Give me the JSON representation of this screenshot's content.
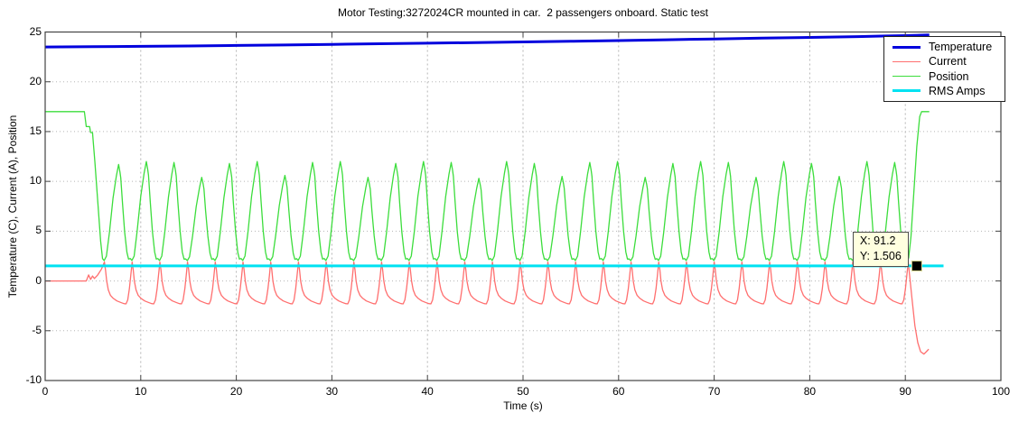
{
  "chart_data": {
    "type": "line",
    "title": "Motor Testing:3272024CR mounted in car.  2 passengers onboard. Static test",
    "xlabel": "Time (s)",
    "ylabel": "Temperature (C), Current (A), Position",
    "xlim": [
      0,
      100
    ],
    "ylim": [
      -10,
      25
    ],
    "xticks": [
      0,
      10,
      20,
      30,
      40,
      50,
      60,
      70,
      80,
      90,
      100
    ],
    "yticks": [
      -10,
      -5,
      0,
      5,
      10,
      15,
      20,
      25
    ],
    "grid": true,
    "legend_position": "northeast",
    "axis_color": "#444444",
    "grid_color": "#b5b5b5",
    "series": [
      {
        "name": "Temperature",
        "color": "#0000dd",
        "width": 3,
        "points": [
          [
            0,
            23.5
          ],
          [
            5,
            23.52
          ],
          [
            10,
            23.56
          ],
          [
            15,
            23.6
          ],
          [
            20,
            23.65
          ],
          [
            25,
            23.7
          ],
          [
            30,
            23.76
          ],
          [
            35,
            23.82
          ],
          [
            40,
            23.88
          ],
          [
            45,
            23.94
          ],
          [
            50,
            24.0
          ],
          [
            55,
            24.07
          ],
          [
            60,
            24.14
          ],
          [
            65,
            24.22
          ],
          [
            70,
            24.3
          ],
          [
            75,
            24.38
          ],
          [
            80,
            24.46
          ],
          [
            85,
            24.54
          ],
          [
            88,
            24.6
          ],
          [
            90,
            24.64
          ],
          [
            92.5,
            24.7
          ]
        ]
      },
      {
        "name": "Current",
        "color": "#ff6f6f",
        "width": 1.3,
        "pre": [
          [
            0,
            0
          ],
          [
            4.3,
            0
          ],
          [
            4.55,
            0.6
          ],
          [
            4.75,
            0.15
          ],
          [
            4.95,
            0.5
          ],
          [
            5.15,
            0.25
          ],
          [
            5.5,
            0.6
          ],
          [
            5.9,
            1.2
          ]
        ],
        "cycle": {
          "t0": 6.2,
          "period": 2.9,
          "count": 29,
          "vmin": -2.3,
          "peak_ref": 1.9,
          "peaks": null,
          "shape": [
            [
              0,
              1.9
            ],
            [
              0.04,
              1.1
            ],
            [
              0.08,
              0.0
            ],
            [
              0.14,
              -0.9
            ],
            [
              0.22,
              -1.45
            ],
            [
              0.32,
              -1.75
            ],
            [
              0.45,
              -2.0
            ],
            [
              0.58,
              -2.15
            ],
            [
              0.7,
              -2.28
            ],
            [
              0.78,
              -2.3
            ],
            [
              0.84,
              -1.9
            ],
            [
              0.9,
              -0.8
            ],
            [
              0.95,
              0.5
            ]
          ]
        },
        "post": [
          [
            90.3,
            1.9
          ],
          [
            90.45,
            0.5
          ],
          [
            90.7,
            -1.8
          ],
          [
            91.0,
            -4.5
          ],
          [
            91.3,
            -6.2
          ],
          [
            91.6,
            -7.1
          ],
          [
            91.95,
            -7.35
          ],
          [
            92.2,
            -7.1
          ],
          [
            92.45,
            -6.85
          ]
        ]
      },
      {
        "name": "Position",
        "color": "#3cdd3c",
        "width": 1.3,
        "pre": [
          [
            0,
            17
          ],
          [
            4.1,
            17
          ],
          [
            4.3,
            15.5
          ],
          [
            4.65,
            15.5
          ],
          [
            4.75,
            14.9
          ],
          [
            4.95,
            14.9
          ],
          [
            5.2,
            12
          ],
          [
            5.5,
            8
          ],
          [
            5.8,
            4
          ]
        ],
        "cycle": {
          "t0": 6.0,
          "period": 2.9,
          "count": 29,
          "vmin": 2.0,
          "peak_ref": 12,
          "peaks": [
            11.7,
            12,
            11.9,
            10.4,
            11.8,
            12,
            10.6,
            11.9,
            12,
            10.4,
            11.8,
            12,
            11.9,
            10.3,
            12,
            11.8,
            10.5,
            11.9,
            12,
            10.4,
            11.8,
            12,
            11.9,
            10.4,
            12,
            11.8,
            10.5,
            12,
            11.9
          ],
          "shape": [
            [
              0,
              2.25
            ],
            [
              0.06,
              2.05
            ],
            [
              0.14,
              2.5
            ],
            [
              0.25,
              5.0
            ],
            [
              0.38,
              8.5
            ],
            [
              0.5,
              10.8
            ],
            [
              0.58,
              12
            ],
            [
              0.63,
              11.2
            ],
            [
              0.66,
              10.6
            ],
            [
              0.72,
              8.0
            ],
            [
              0.8,
              5.0
            ],
            [
              0.88,
              2.9
            ],
            [
              0.94,
              2.2
            ]
          ]
        },
        "post": [
          [
            90.1,
            2.1
          ],
          [
            90.35,
            2.3
          ],
          [
            90.6,
            4.5
          ],
          [
            90.9,
            9.0
          ],
          [
            91.2,
            13.5
          ],
          [
            91.5,
            16.5
          ],
          [
            91.7,
            17
          ],
          [
            92.5,
            17
          ]
        ]
      },
      {
        "name": "RMS Amps",
        "color": "#00e2f2",
        "width": 3,
        "points": [
          [
            0,
            1.506
          ],
          [
            94,
            1.506
          ]
        ]
      }
    ],
    "legend_items": [
      {
        "label": "Temperature",
        "color": "#0000dd",
        "width": 3
      },
      {
        "label": "Current",
        "color": "#ff6f6f",
        "width": 1.5
      },
      {
        "label": "Position",
        "color": "#3cdd3c",
        "width": 1.5
      },
      {
        "label": "RMS Amps",
        "color": "#00e2f2",
        "width": 3
      }
    ],
    "tooltip": {
      "line1": "X: 91.2",
      "line2": "Y: 1.506",
      "x": 91.2,
      "y": 1.506,
      "bg": "#ffffdf"
    }
  }
}
